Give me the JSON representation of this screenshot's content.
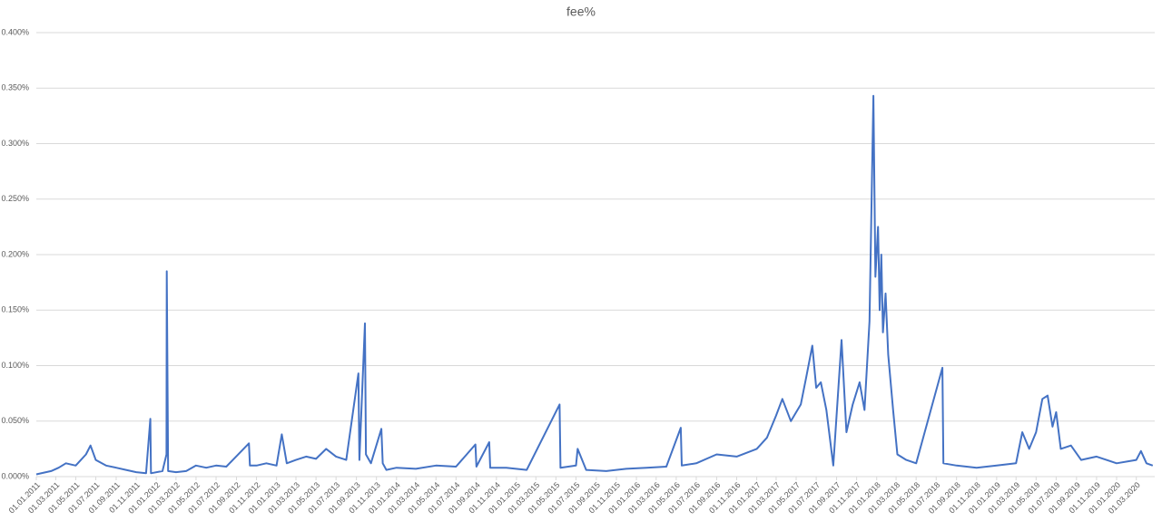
{
  "chart_data": {
    "type": "line",
    "title": "fee%",
    "x": [
      "01.01.2011",
      "15.02.2011",
      "10.03.2011",
      "01.04.2011",
      "01.05.2011",
      "01.06.2011",
      "15.06.2011",
      "01.07.2011",
      "01.08.2011",
      "01.09.2011",
      "01.10.2011",
      "01.11.2011",
      "01.12.2011",
      "14.12.2011",
      "16.12.2011",
      "20.01.2012",
      "01.02.2012",
      "02.02.2012",
      "06.02.2012",
      "01.03.2012",
      "01.04.2012",
      "01.05.2012",
      "01.06.2012",
      "01.07.2012",
      "01.08.2012",
      "09.10.2012",
      "12.10.2012",
      "01.11.2012",
      "01.12.2012",
      "01.01.2013",
      "17.01.2013",
      "01.02.2013",
      "01.03.2013",
      "01.04.2013",
      "01.05.2013",
      "01.06.2013",
      "01.07.2013",
      "01.08.2013",
      "07.09.2013",
      "10.09.2013",
      "27.09.2013",
      "30.09.2013",
      "15.10.2013",
      "16.11.2013",
      "20.11.2013",
      "01.12.2013",
      "01.01.2014",
      "01.03.2014",
      "01.05.2014",
      "01.07.2014",
      "29.08.2014",
      "01.09.2014",
      "10.10.2014",
      "13.10.2014",
      "01.12.2014",
      "01.02.2015",
      "12.05.2015",
      "15.05.2015",
      "01.07.2015",
      "06.07.2015",
      "01.08.2015",
      "01.10.2015",
      "01.12.2015",
      "01.02.2016",
      "01.04.2016",
      "15.05.2016",
      "18.05.2016",
      "01.07.2016",
      "01.09.2016",
      "01.11.2016",
      "01.01.2017",
      "01.02.2017",
      "01.03.2017",
      "20.03.2017",
      "15.04.2017",
      "15.05.2017",
      "01.06.2017",
      "19.06.2017",
      "01.07.2017",
      "15.07.2017",
      "01.08.2017",
      "22.08.2017",
      "16.09.2017",
      "01.10.2017",
      "20.10.2017",
      "10.11.2017",
      "25.11.2017",
      "10.12.2017",
      "22.12.2017",
      "28.12.2017",
      "05.01.2018",
      "10.01.2018",
      "15.01.2018",
      "20.01.2018",
      "28.01.2018",
      "05.02.2018",
      "20.02.2018",
      "05.03.2018",
      "01.04.2018",
      "01.05.2018",
      "20.07.2018",
      "23.07.2018",
      "01.09.2018",
      "01.11.2018",
      "01.01.2019",
      "01.03.2019",
      "20.03.2019",
      "10.04.2019",
      "01.05.2019",
      "20.05.2019",
      "05.06.2019",
      "20.06.2019",
      "01.07.2019",
      "15.07.2019",
      "15.08.2019",
      "15.09.2019",
      "01.11.2019",
      "01.01.2020",
      "01.03.2020",
      "15.03.2020",
      "01.04.2020",
      "20.04.2020"
    ],
    "series": [
      {
        "name": "fee%",
        "color": "#4472c4",
        "values": [
          0.002,
          0.005,
          0.008,
          0.012,
          0.01,
          0.02,
          0.028,
          0.015,
          0.01,
          0.008,
          0.006,
          0.004,
          0.003,
          0.052,
          0.003,
          0.005,
          0.02,
          0.185,
          0.005,
          0.004,
          0.005,
          0.01,
          0.008,
          0.01,
          0.009,
          0.03,
          0.01,
          0.01,
          0.012,
          0.01,
          0.038,
          0.012,
          0.015,
          0.018,
          0.016,
          0.025,
          0.018,
          0.015,
          0.093,
          0.015,
          0.138,
          0.02,
          0.012,
          0.043,
          0.012,
          0.006,
          0.008,
          0.007,
          0.01,
          0.009,
          0.029,
          0.009,
          0.031,
          0.008,
          0.008,
          0.006,
          0.065,
          0.008,
          0.01,
          0.025,
          0.006,
          0.005,
          0.007,
          0.008,
          0.009,
          0.044,
          0.01,
          0.012,
          0.02,
          0.018,
          0.025,
          0.035,
          0.055,
          0.07,
          0.05,
          0.065,
          0.09,
          0.118,
          0.08,
          0.085,
          0.06,
          0.01,
          0.123,
          0.04,
          0.065,
          0.085,
          0.06,
          0.14,
          0.343,
          0.18,
          0.225,
          0.15,
          0.2,
          0.13,
          0.165,
          0.11,
          0.06,
          0.02,
          0.015,
          0.012,
          0.098,
          0.012,
          0.01,
          0.008,
          0.01,
          0.012,
          0.04,
          0.025,
          0.04,
          0.07,
          0.073,
          0.045,
          0.058,
          0.025,
          0.028,
          0.015,
          0.018,
          0.012,
          0.015,
          0.023,
          0.012,
          0.01
        ]
      }
    ],
    "xlim": [
      "01.01.2011",
      "26.04.2020"
    ],
    "xticks": [
      "01.01.2011",
      "01.03.2011",
      "01.05.2011",
      "01.07.2011",
      "01.09.2011",
      "01.11.2011",
      "01.01.2012",
      "01.03.2012",
      "01.05.2012",
      "01.07.2012",
      "01.09.2012",
      "01.11.2012",
      "01.01.2013",
      "01.03.2013",
      "01.05.2013",
      "01.07.2013",
      "01.09.2013",
      "01.11.2013",
      "01.01.2014",
      "01.03.2014",
      "01.05.2014",
      "01.07.2014",
      "01.09.2014",
      "01.11.2014",
      "01.01.2015",
      "01.03.2015",
      "01.05.2015",
      "01.07.2015",
      "01.09.2015",
      "01.11.2015",
      "01.01.2016",
      "01.03.2016",
      "01.05.2016",
      "01.07.2016",
      "01.09.2016",
      "01.11.2016",
      "01.01.2017",
      "01.03.2017",
      "01.05.2017",
      "01.07.2017",
      "01.09.2017",
      "01.11.2017",
      "01.01.2018",
      "01.03.2018",
      "01.05.2018",
      "01.07.2018",
      "01.09.2018",
      "01.11.2018",
      "01.01.2019",
      "01.03.2019",
      "01.05.2019",
      "01.07.2019",
      "01.09.2019",
      "01.11.2019",
      "01.01.2020",
      "01.03.2020"
    ],
    "ylim": [
      0,
      0.4
    ],
    "yticks": [
      {
        "value": 0,
        "label": "0.000%"
      },
      {
        "value": 0.05,
        "label": "0.050%"
      },
      {
        "value": 0.1,
        "label": "0.100%"
      },
      {
        "value": 0.15,
        "label": "0.150%"
      },
      {
        "value": 0.2,
        "label": "0.200%"
      },
      {
        "value": 0.25,
        "label": "0.250%"
      },
      {
        "value": 0.3,
        "label": "0.300%"
      },
      {
        "value": 0.35,
        "label": "0.350%"
      },
      {
        "value": 0.4,
        "label": "0.400%"
      }
    ],
    "grid": true
  }
}
